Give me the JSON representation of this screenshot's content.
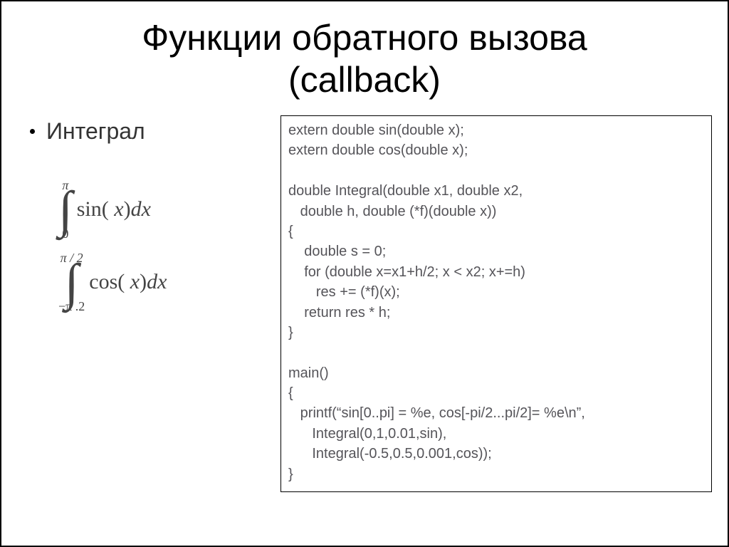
{
  "slide": {
    "title_line1": "Функции обратного вызова",
    "title_line2": "(callback)",
    "bullet_text": "Интеграл",
    "title_fontsize": 50,
    "bullet_fontsize": 32,
    "code_fontsize": 20,
    "border_color": "#000000",
    "background_color": "#ffffff",
    "text_color_primary": "#000000",
    "text_color_secondary": "#555459"
  },
  "formulas": {
    "integral1": {
      "upper": "π",
      "lower": "0",
      "body": "sin( x)dx"
    },
    "integral2": {
      "upper": "π / 2",
      "lower": "−π .2",
      "body": "cos( x)dx"
    },
    "font_family": "Times New Roman",
    "upper_lower_fontsize": 18,
    "sign_fontsize": 72,
    "body_fontsize": 30
  },
  "code": {
    "l01": "extern double sin(double x);",
    "l02": "extern double cos(double x);",
    "l03": "",
    "l04": "double Integral(double x1, double x2,",
    "l05": "   double h, double (*f)(double x))",
    "l06": "{",
    "l07": "    double s = 0;",
    "l08": "    for (double x=x1+h/2; x < x2; x+=h)",
    "l09": "       res += (*f)(x);",
    "l10": "    return res * h;",
    "l11": "}",
    "l12": "",
    "l13": "main()",
    "l14": "{",
    "l15": "   printf(“sin[0..pi] = %e, cos[-pi/2...pi/2]= %e\\n”,",
    "l16": "      Integral(0,1,0.01,sin),",
    "l17": "      Integral(-0.5,0.5,0.001,cos));",
    "l18": "}"
  }
}
